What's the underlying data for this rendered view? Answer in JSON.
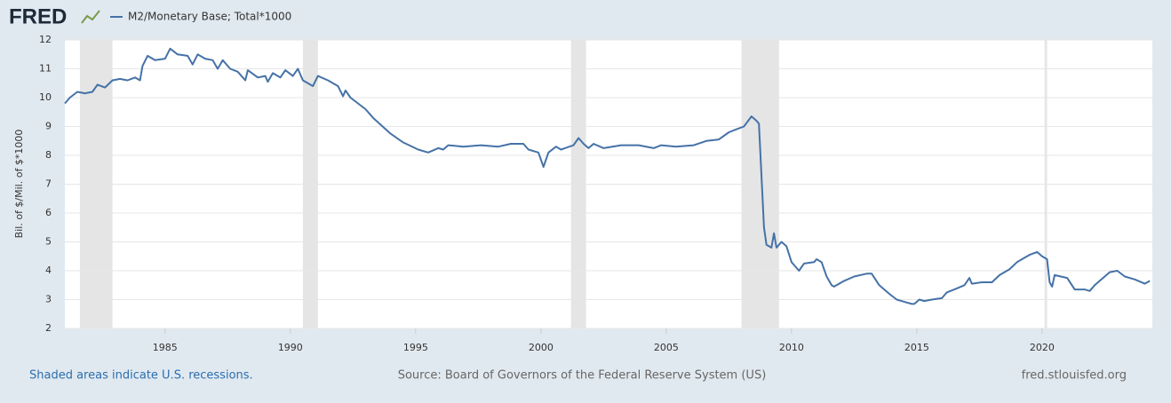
{
  "chart_data": {
    "type": "line",
    "logo": "FRED",
    "y_label": "Bil. of $/Mil. of $*1000",
    "footer_left": "Shaded areas indicate U.S. recessions.",
    "source": "Source: Board of Governors of the Federal Reserve System (US)",
    "site": "fred.stlouisfed.org",
    "grid": true,
    "xlim": [
      1981.0,
      2024.4
    ],
    "ylim": [
      2,
      12
    ],
    "xticks": [
      1985,
      1990,
      1995,
      2000,
      2005,
      2010,
      2015,
      2020
    ],
    "yticks": [
      2,
      3,
      4,
      5,
      6,
      7,
      8,
      9,
      10,
      11,
      12
    ],
    "recessions": [
      [
        1981.6,
        1982.9
      ],
      [
        1990.5,
        1991.1
      ],
      [
        2001.2,
        2001.8
      ],
      [
        2008.0,
        2009.5
      ],
      [
        2020.1,
        2020.2
      ]
    ],
    "x": [
      1981.0,
      1981.2,
      1981.5,
      1981.8,
      1982.1,
      1982.3,
      1982.6,
      1982.9,
      1983.2,
      1983.5,
      1983.8,
      1984.0,
      1984.1,
      1984.3,
      1984.6,
      1985.0,
      1985.2,
      1985.5,
      1985.9,
      1986.1,
      1986.3,
      1986.6,
      1986.9,
      1987.1,
      1987.3,
      1987.6,
      1987.9,
      1988.2,
      1988.3,
      1988.7,
      1989.0,
      1989.1,
      1989.3,
      1989.6,
      1989.8,
      1990.1,
      1990.3,
      1990.5,
      1990.9,
      1991.1,
      1991.5,
      1991.9,
      1992.1,
      1992.2,
      1992.4,
      1993.0,
      1993.3,
      1994.0,
      1994.5,
      1995.1,
      1995.5,
      1995.9,
      1996.1,
      1996.3,
      1996.9,
      1997.6,
      1998.3,
      1998.8,
      1999.3,
      1999.5,
      1999.9,
      2000.1,
      2000.3,
      2000.6,
      2000.8,
      2001.3,
      2001.5,
      2001.7,
      2001.9,
      2002.1,
      2002.5,
      2003.2,
      2003.9,
      2004.5,
      2004.8,
      2005.4,
      2006.1,
      2006.6,
      2007.1,
      2007.5,
      2007.8,
      2008.1,
      2008.4,
      2008.6,
      2008.7,
      2008.9,
      2009.0,
      2009.2,
      2009.3,
      2009.4,
      2009.6,
      2009.8,
      2010.0,
      2010.1,
      2010.3,
      2010.5,
      2010.9,
      2011.0,
      2011.2,
      2011.4,
      2011.6,
      2011.7,
      2012.1,
      2012.5,
      2013.0,
      2013.2,
      2013.5,
      2013.9,
      2014.2,
      2014.6,
      2014.8,
      2014.9,
      2015.1,
      2015.3,
      2015.6,
      2016.0,
      2016.2,
      2016.5,
      2016.9,
      2017.1,
      2017.2,
      2017.6,
      2018.0,
      2018.3,
      2018.7,
      2019.0,
      2019.2,
      2019.5,
      2019.8,
      2020.0,
      2020.2,
      2020.3,
      2020.4,
      2020.5,
      2021.0,
      2021.3,
      2021.7,
      2021.9,
      2022.1,
      2022.5,
      2022.7,
      2023.0,
      2023.3,
      2023.7,
      2024.1,
      2024.3
    ],
    "series": [
      {
        "name": "M2/Monetary Base; Total*1000",
        "color": "#4572a7",
        "values": [
          9.8,
          10.0,
          10.2,
          10.15,
          10.2,
          10.45,
          10.35,
          10.6,
          10.65,
          10.6,
          10.7,
          10.6,
          11.1,
          11.45,
          11.3,
          11.35,
          11.7,
          11.5,
          11.45,
          11.15,
          11.5,
          11.35,
          11.3,
          11.0,
          11.3,
          11.0,
          10.9,
          10.6,
          10.95,
          10.7,
          10.75,
          10.55,
          10.85,
          10.7,
          10.95,
          10.75,
          11.0,
          10.6,
          10.4,
          10.75,
          10.6,
          10.4,
          10.05,
          10.25,
          10.0,
          9.6,
          9.3,
          8.75,
          8.45,
          8.2,
          8.1,
          8.25,
          8.2,
          8.35,
          8.3,
          8.35,
          8.3,
          8.4,
          8.4,
          8.2,
          8.1,
          7.6,
          8.1,
          8.3,
          8.2,
          8.35,
          8.6,
          8.4,
          8.25,
          8.4,
          8.25,
          8.35,
          8.35,
          8.25,
          8.35,
          8.3,
          8.35,
          8.5,
          8.55,
          8.8,
          8.9,
          9.0,
          9.35,
          9.2,
          9.1,
          5.5,
          4.9,
          4.8,
          5.3,
          4.8,
          5.0,
          4.85,
          4.3,
          4.2,
          4.0,
          4.25,
          4.3,
          4.4,
          4.3,
          3.8,
          3.5,
          3.45,
          3.65,
          3.8,
          3.9,
          3.9,
          3.5,
          3.2,
          3.0,
          2.9,
          2.85,
          2.85,
          3.0,
          2.95,
          3.0,
          3.05,
          3.25,
          3.35,
          3.5,
          3.75,
          3.55,
          3.6,
          3.6,
          3.85,
          4.05,
          4.3,
          4.4,
          4.55,
          4.65,
          4.5,
          4.4,
          3.6,
          3.45,
          3.85,
          3.75,
          3.35,
          3.35,
          3.3,
          3.5,
          3.8,
          3.95,
          4.0,
          3.8,
          3.7,
          3.55,
          3.65
        ]
      }
    ]
  }
}
